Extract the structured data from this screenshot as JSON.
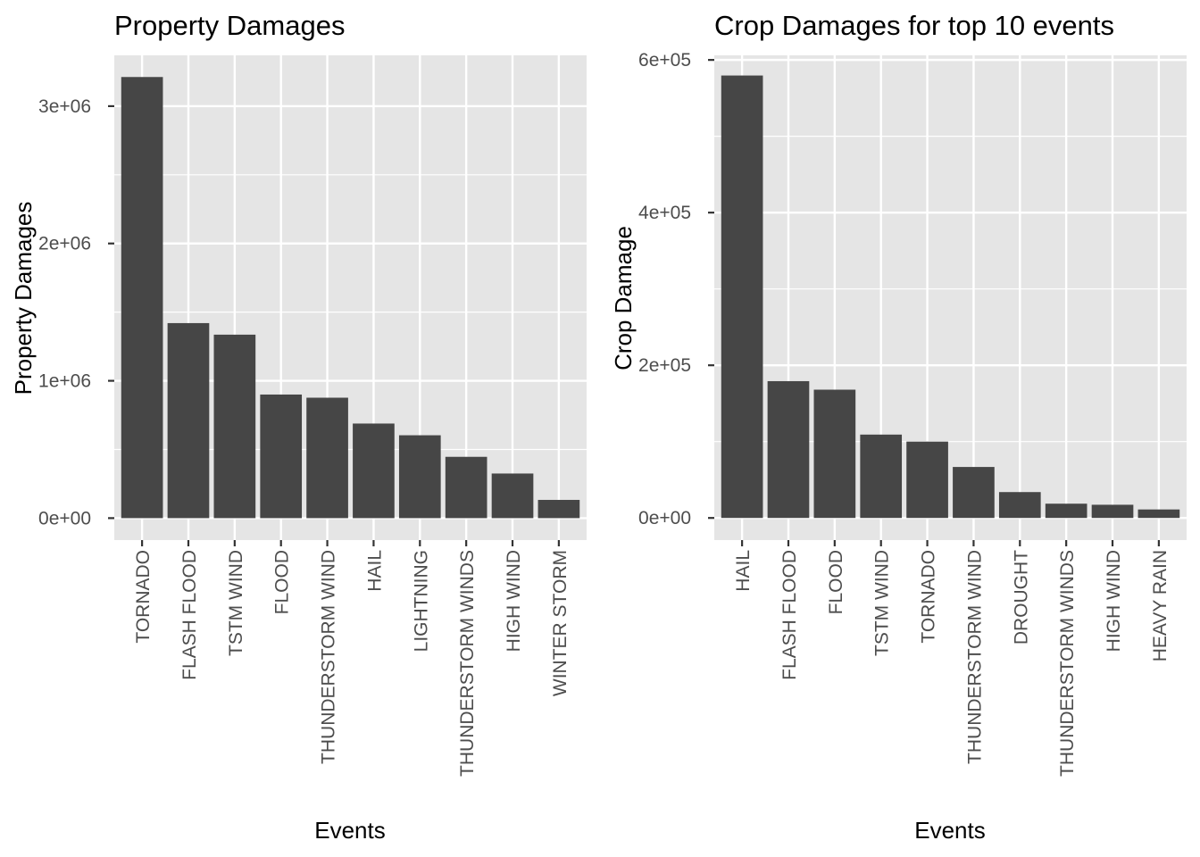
{
  "chart_data": [
    {
      "type": "bar",
      "title": "Property Damages",
      "xlabel": "Events",
      "ylabel": "Property Damages",
      "categories": [
        "TORNADO",
        "FLASH FLOOD",
        "TSTM WIND",
        "FLOOD",
        "THUNDERSTORM WIND",
        "HAIL",
        "LIGHTNING",
        "THUNDERSTORM WINDS",
        "HIGH WIND",
        "WINTER STORM"
      ],
      "values": [
        3212258,
        1420125,
        1335966,
        899938,
        876844,
        688693,
        603352,
        446293,
        324732,
        132721
      ],
      "ylim": [
        -160000,
        3370000
      ],
      "yticks": [
        0,
        1000000,
        2000000,
        3000000
      ],
      "ytick_labels": [
        "0e+00",
        "1e+06",
        "2e+06",
        "3e+06"
      ],
      "grid": true,
      "bar_color": "#464646"
    },
    {
      "type": "bar",
      "title": "Crop Damages for top 10 events",
      "xlabel": "Events",
      "ylabel": "Crop Damage",
      "categories": [
        "HAIL",
        "FLASH FLOOD",
        "FLOOD",
        "TSTM WIND",
        "TORNADO",
        "THUNDERSTORM WIND",
        "DROUGHT",
        "THUNDERSTORM WINDS",
        "HIGH WIND",
        "HEAVY RAIN"
      ],
      "values": [
        579596,
        179200,
        168038,
        109203,
        100019,
        66791,
        33899,
        18685,
        17283,
        11123
      ],
      "ylim": [
        -29000,
        606000
      ],
      "yticks": [
        0,
        200000,
        400000,
        600000
      ],
      "ytick_labels": [
        "0e+00",
        "2e+05",
        "4e+05",
        "6e+05"
      ],
      "grid": true,
      "bar_color": "#464646"
    }
  ]
}
